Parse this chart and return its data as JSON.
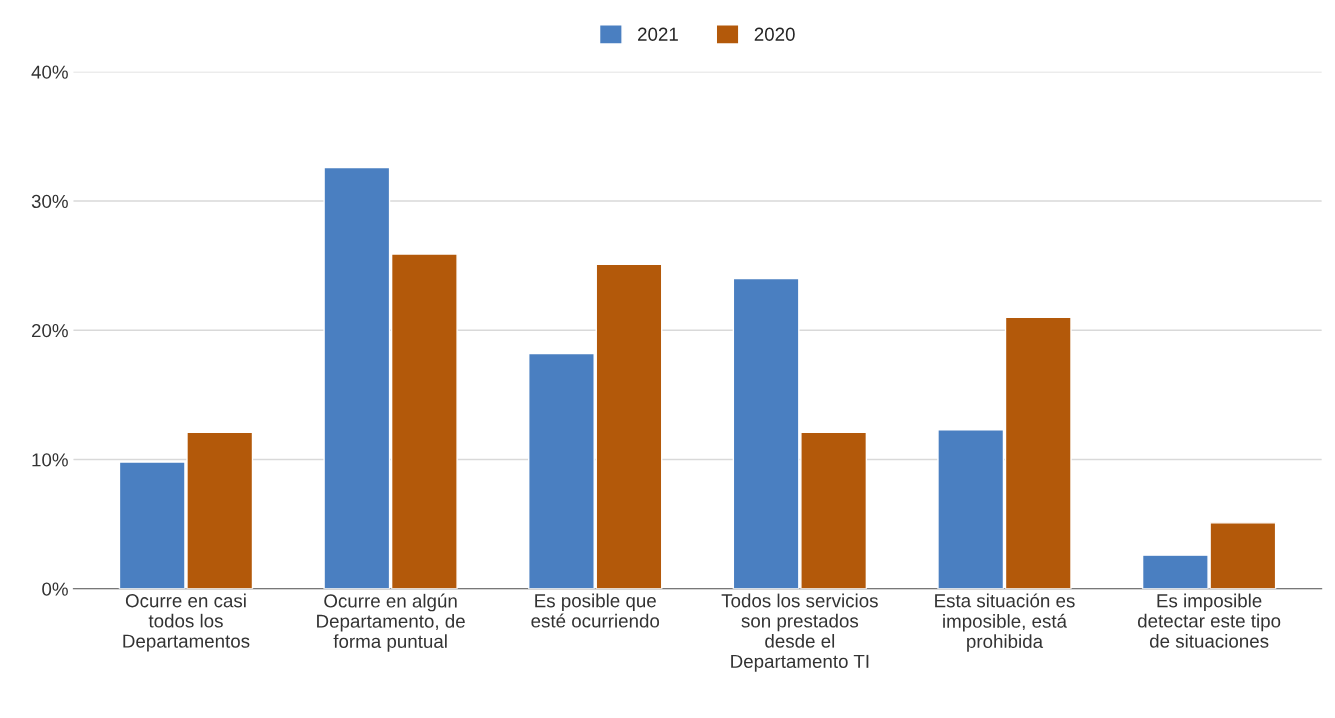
{
  "chart_data": {
    "type": "bar",
    "categories": [
      "Ocurre en casi\ntodos los\nDepartamentos",
      "Ocurre en algún\nDepartamento, de\nforma puntual",
      "Es posible que\nesté ocurriendo",
      "Todos los servicios\nson prestados\ndesde el\nDepartamento TI",
      "Esta situación es\nimposible, está\nprohibida",
      "Es imposible\ndetectar este tipo\nde situaciones"
    ],
    "series": [
      {
        "name": "2021",
        "color": "#4a7fc1",
        "values": [
          9.8,
          32.6,
          18.2,
          24.0,
          12.3,
          2.6
        ]
      },
      {
        "name": "2020",
        "color": "#b3590a",
        "values": [
          12.1,
          25.9,
          25.1,
          12.1,
          21.0,
          5.1
        ]
      }
    ],
    "ylim": [
      0,
      40
    ],
    "yticks": [
      {
        "value": 0,
        "label": "0%"
      },
      {
        "value": 10,
        "label": "10%"
      },
      {
        "value": 20,
        "label": "20%"
      },
      {
        "value": 30,
        "label": "30%"
      },
      {
        "value": 40,
        "label": "40%"
      }
    ],
    "grid": "y",
    "legend": "top"
  }
}
